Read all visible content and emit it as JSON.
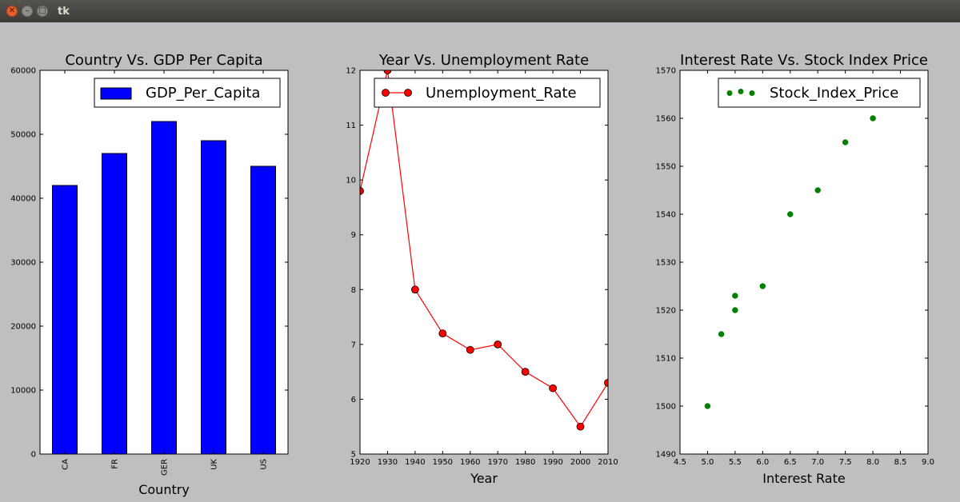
{
  "window": {
    "title": "tk"
  },
  "chart_data": [
    {
      "type": "bar",
      "title": "Country Vs. GDP Per Capita",
      "xlabel": "Country",
      "ylabel": "",
      "categories": [
        "CA",
        "FR",
        "GER",
        "UK",
        "US"
      ],
      "series": [
        {
          "name": "GDP_Per_Capita",
          "values": [
            42000,
            47000,
            52000,
            49000,
            45000
          ]
        }
      ],
      "ylim": [
        0,
        60000
      ],
      "yticks": [
        "0",
        "10000",
        "20000",
        "30000",
        "40000",
        "50000",
        "60000"
      ],
      "color": "#0000ff",
      "grid": false,
      "legend": "top-right"
    },
    {
      "type": "line",
      "title": "Year Vs. Unemployment Rate",
      "xlabel": "Year",
      "ylabel": "",
      "x": [
        1920,
        1930,
        1940,
        1950,
        1960,
        1970,
        1980,
        1990,
        2000,
        2010
      ],
      "series": [
        {
          "name": "Unemployment_Rate",
          "values": [
            9.8,
            12,
            8,
            7.2,
            6.9,
            7,
            6.5,
            6.2,
            5.5,
            6.3
          ]
        }
      ],
      "xlim": [
        1920,
        2010
      ],
      "ylim": [
        5,
        12
      ],
      "xticks": [
        "1920",
        "1930",
        "1940",
        "1950",
        "1960",
        "1970",
        "1980",
        "1990",
        "2000",
        "2010"
      ],
      "yticks": [
        "5",
        "6",
        "7",
        "8",
        "9",
        "10",
        "11",
        "12"
      ],
      "color": "#ff0000",
      "grid": false,
      "legend": "top-right"
    },
    {
      "type": "scatter",
      "title": "Interest Rate Vs. Stock Index Price",
      "xlabel": "Interest Rate",
      "ylabel": "",
      "x": [
        5.0,
        5.25,
        5.5,
        5.5,
        6.0,
        6.5,
        7.0,
        7.5,
        8.0
      ],
      "series": [
        {
          "name": "Stock_Index_Price",
          "values": [
            1500,
            1515,
            1520,
            1523,
            1525,
            1540,
            1545,
            1555,
            1560
          ]
        }
      ],
      "xlim": [
        4.5,
        9.0
      ],
      "ylim": [
        1490,
        1570
      ],
      "xticks": [
        "4.5",
        "5.0",
        "5.5",
        "6.0",
        "6.5",
        "7.0",
        "7.5",
        "8.0",
        "8.5",
        "9.0"
      ],
      "yticks": [
        "1490",
        "1500",
        "1510",
        "1520",
        "1530",
        "1540",
        "1550",
        "1560",
        "1570"
      ],
      "color": "#008000",
      "grid": false,
      "legend": "top-right"
    }
  ]
}
